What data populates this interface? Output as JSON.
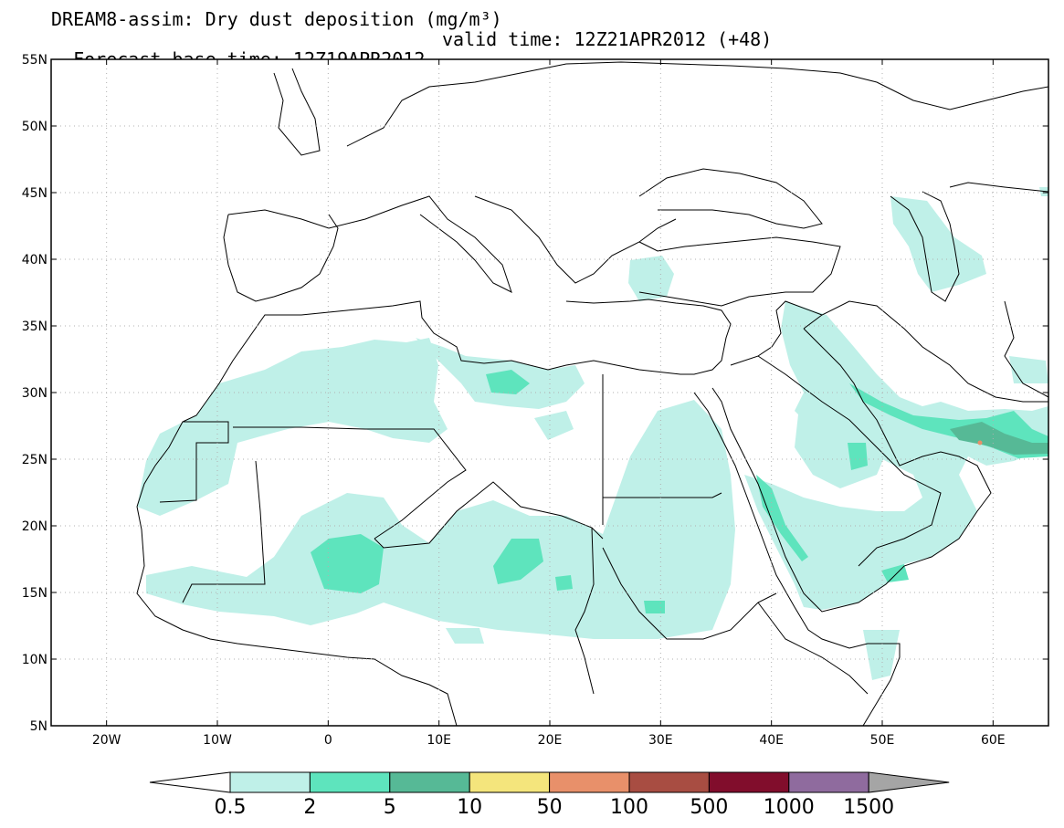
{
  "title": {
    "line1": "DREAM8-assim: Dry dust deposition (mg/m³)",
    "base_time": "Forecast base time: 12Z19APR2012",
    "valid_time": "valid time: 12Z21APR2012 (+48)"
  },
  "axes": {
    "lon_range": [
      -25,
      65
    ],
    "lat_range": [
      5,
      55
    ],
    "lat_ticks": [
      "5N",
      "10N",
      "15N",
      "20N",
      "25N",
      "30N",
      "35N",
      "40N",
      "45N",
      "50N",
      "55N"
    ],
    "lon_ticks": [
      "20W",
      "10W",
      "0",
      "10E",
      "20E",
      "30E",
      "40E",
      "50E",
      "60E"
    ],
    "grid": true
  },
  "colorbar": {
    "labels": [
      "0.5",
      "2",
      "5",
      "10",
      "50",
      "100",
      "500",
      "1000",
      "1500"
    ],
    "colors": [
      "#bff0e8",
      "#5ee4bd",
      "#56b996",
      "#f4e57c",
      "#e8906a",
      "#a84d42",
      "#810d2c",
      "#8f6b9e",
      "#a5a5a5"
    ]
  },
  "map_colors": {
    "light": "#bff0e8",
    "medium": "#5ee4bd",
    "dark": "#56b996",
    "high": "#e8906a"
  }
}
